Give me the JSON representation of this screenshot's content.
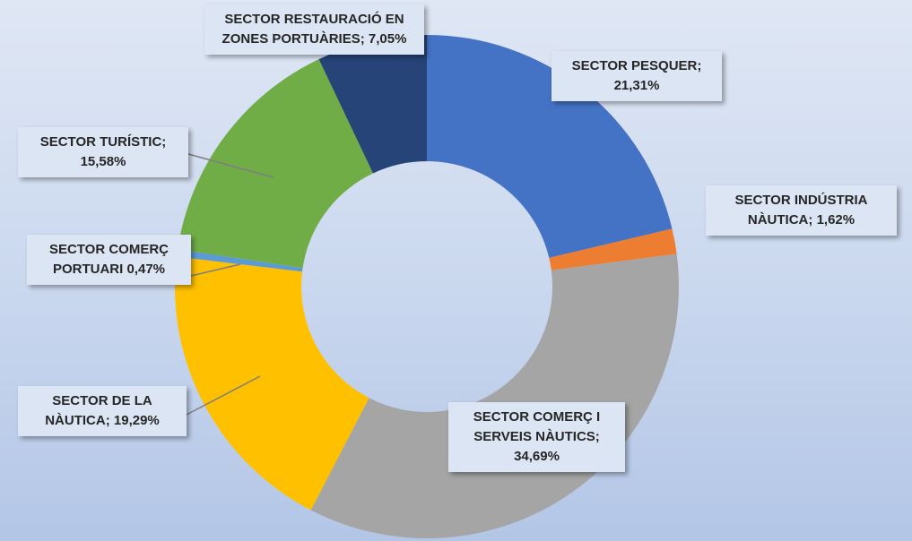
{
  "chart_data": {
    "type": "donut",
    "categories": [
      "SECTOR PESQUER;",
      "SECTOR INDÚSTRIA NÀUTICA;",
      "SECTOR COMERÇ I SERVEIS NÀUTICS;",
      "SECTOR DE LA NÀUTICA;",
      "SECTOR COMERÇ PORTUARI",
      "SECTOR TURÍSTIC;",
      "SECTOR RESTAURACIÓ EN ZONES PORTUÀRIES;"
    ],
    "values": [
      21.31,
      1.62,
      34.69,
      19.29,
      0.47,
      15.58,
      7.05
    ],
    "value_labels": [
      "21,31%",
      "1,62%",
      "34,69%",
      "19,29%",
      "0,47%",
      "15,58%",
      "7,05%"
    ],
    "colors": [
      "#4472c4",
      "#ed7d31",
      "#a5a5a5",
      "#ffc000",
      "#5b9bd5",
      "#70ad47",
      "#264478"
    ]
  }
}
